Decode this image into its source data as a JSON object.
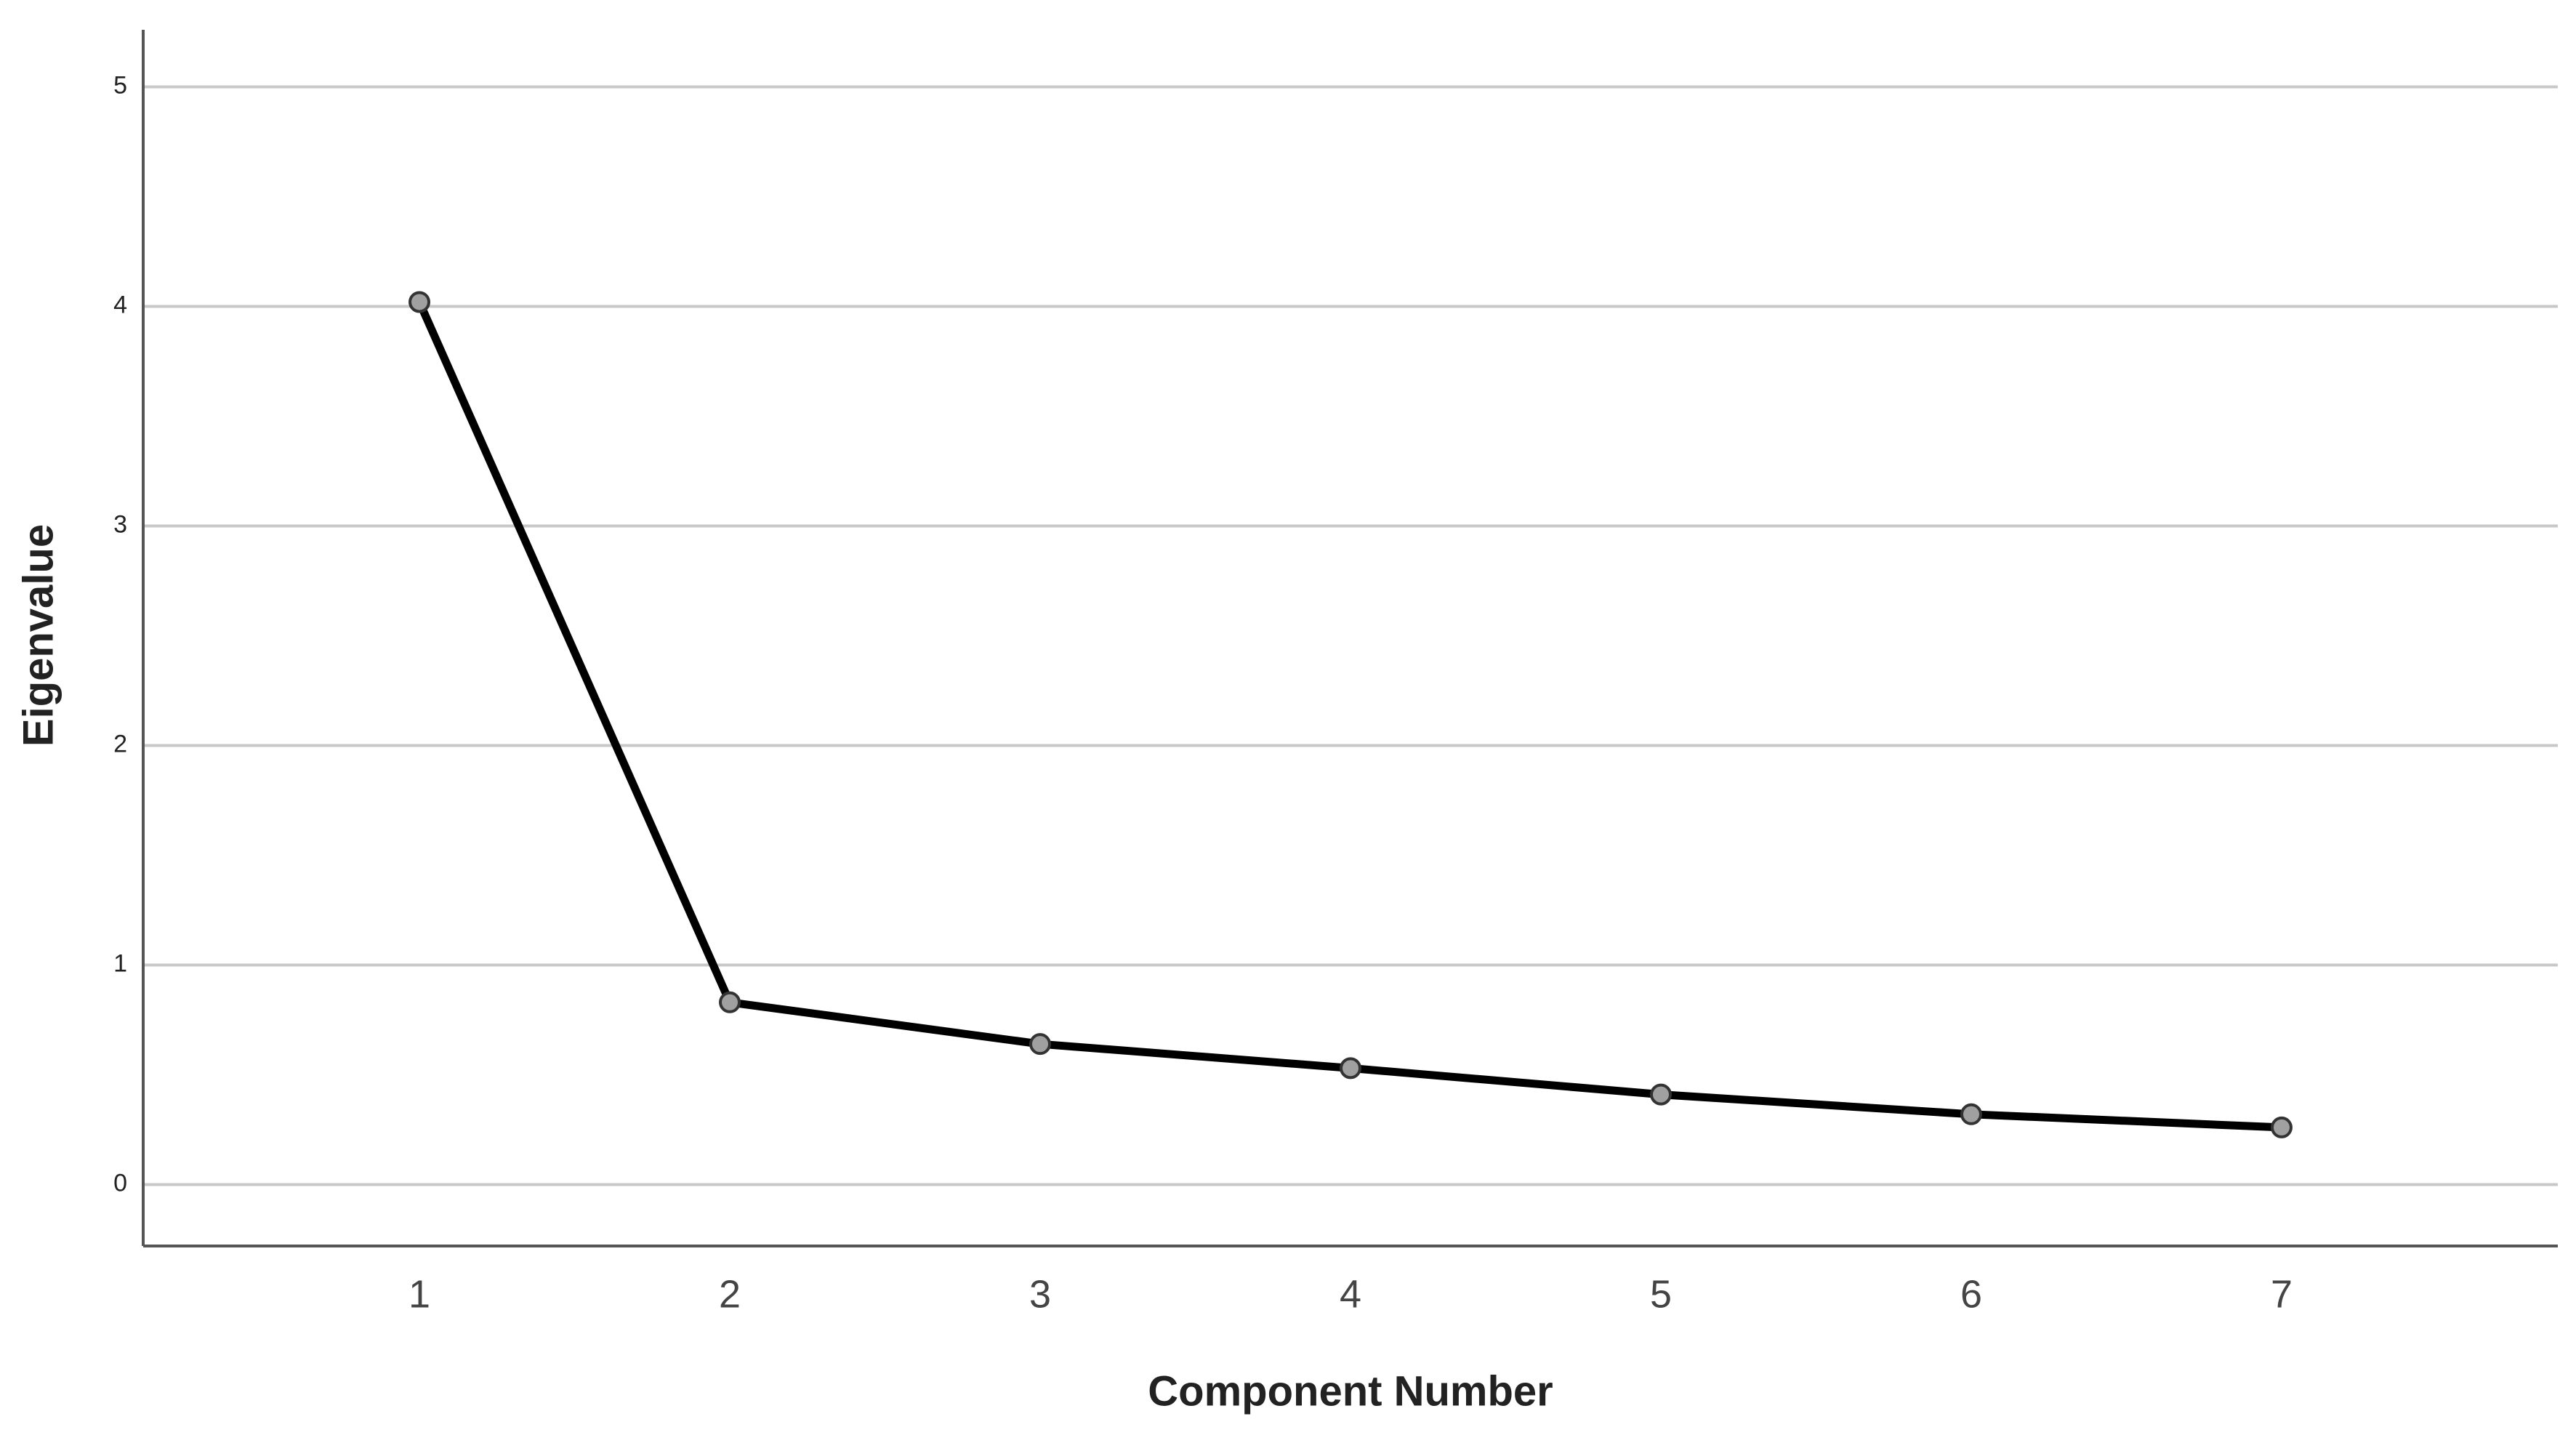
{
  "chart_data": {
    "type": "line",
    "x_label": "Component Number",
    "y_label": "Eigenvalue",
    "x": [
      1,
      2,
      3,
      4,
      5,
      6,
      7
    ],
    "values": [
      4.02,
      0.83,
      0.64,
      0.53,
      0.41,
      0.32,
      0.26
    ],
    "color": "#000000",
    "marker_color": "#a0a0a0",
    "xlim": [
      0.11,
      7.89
    ],
    "xticks": [
      1,
      2,
      3,
      4,
      5,
      6,
      7
    ],
    "ylim": [
      -0.28,
      5.26
    ],
    "yticks": [
      0,
      1,
      2,
      3,
      4,
      5
    ],
    "grid": true
  }
}
